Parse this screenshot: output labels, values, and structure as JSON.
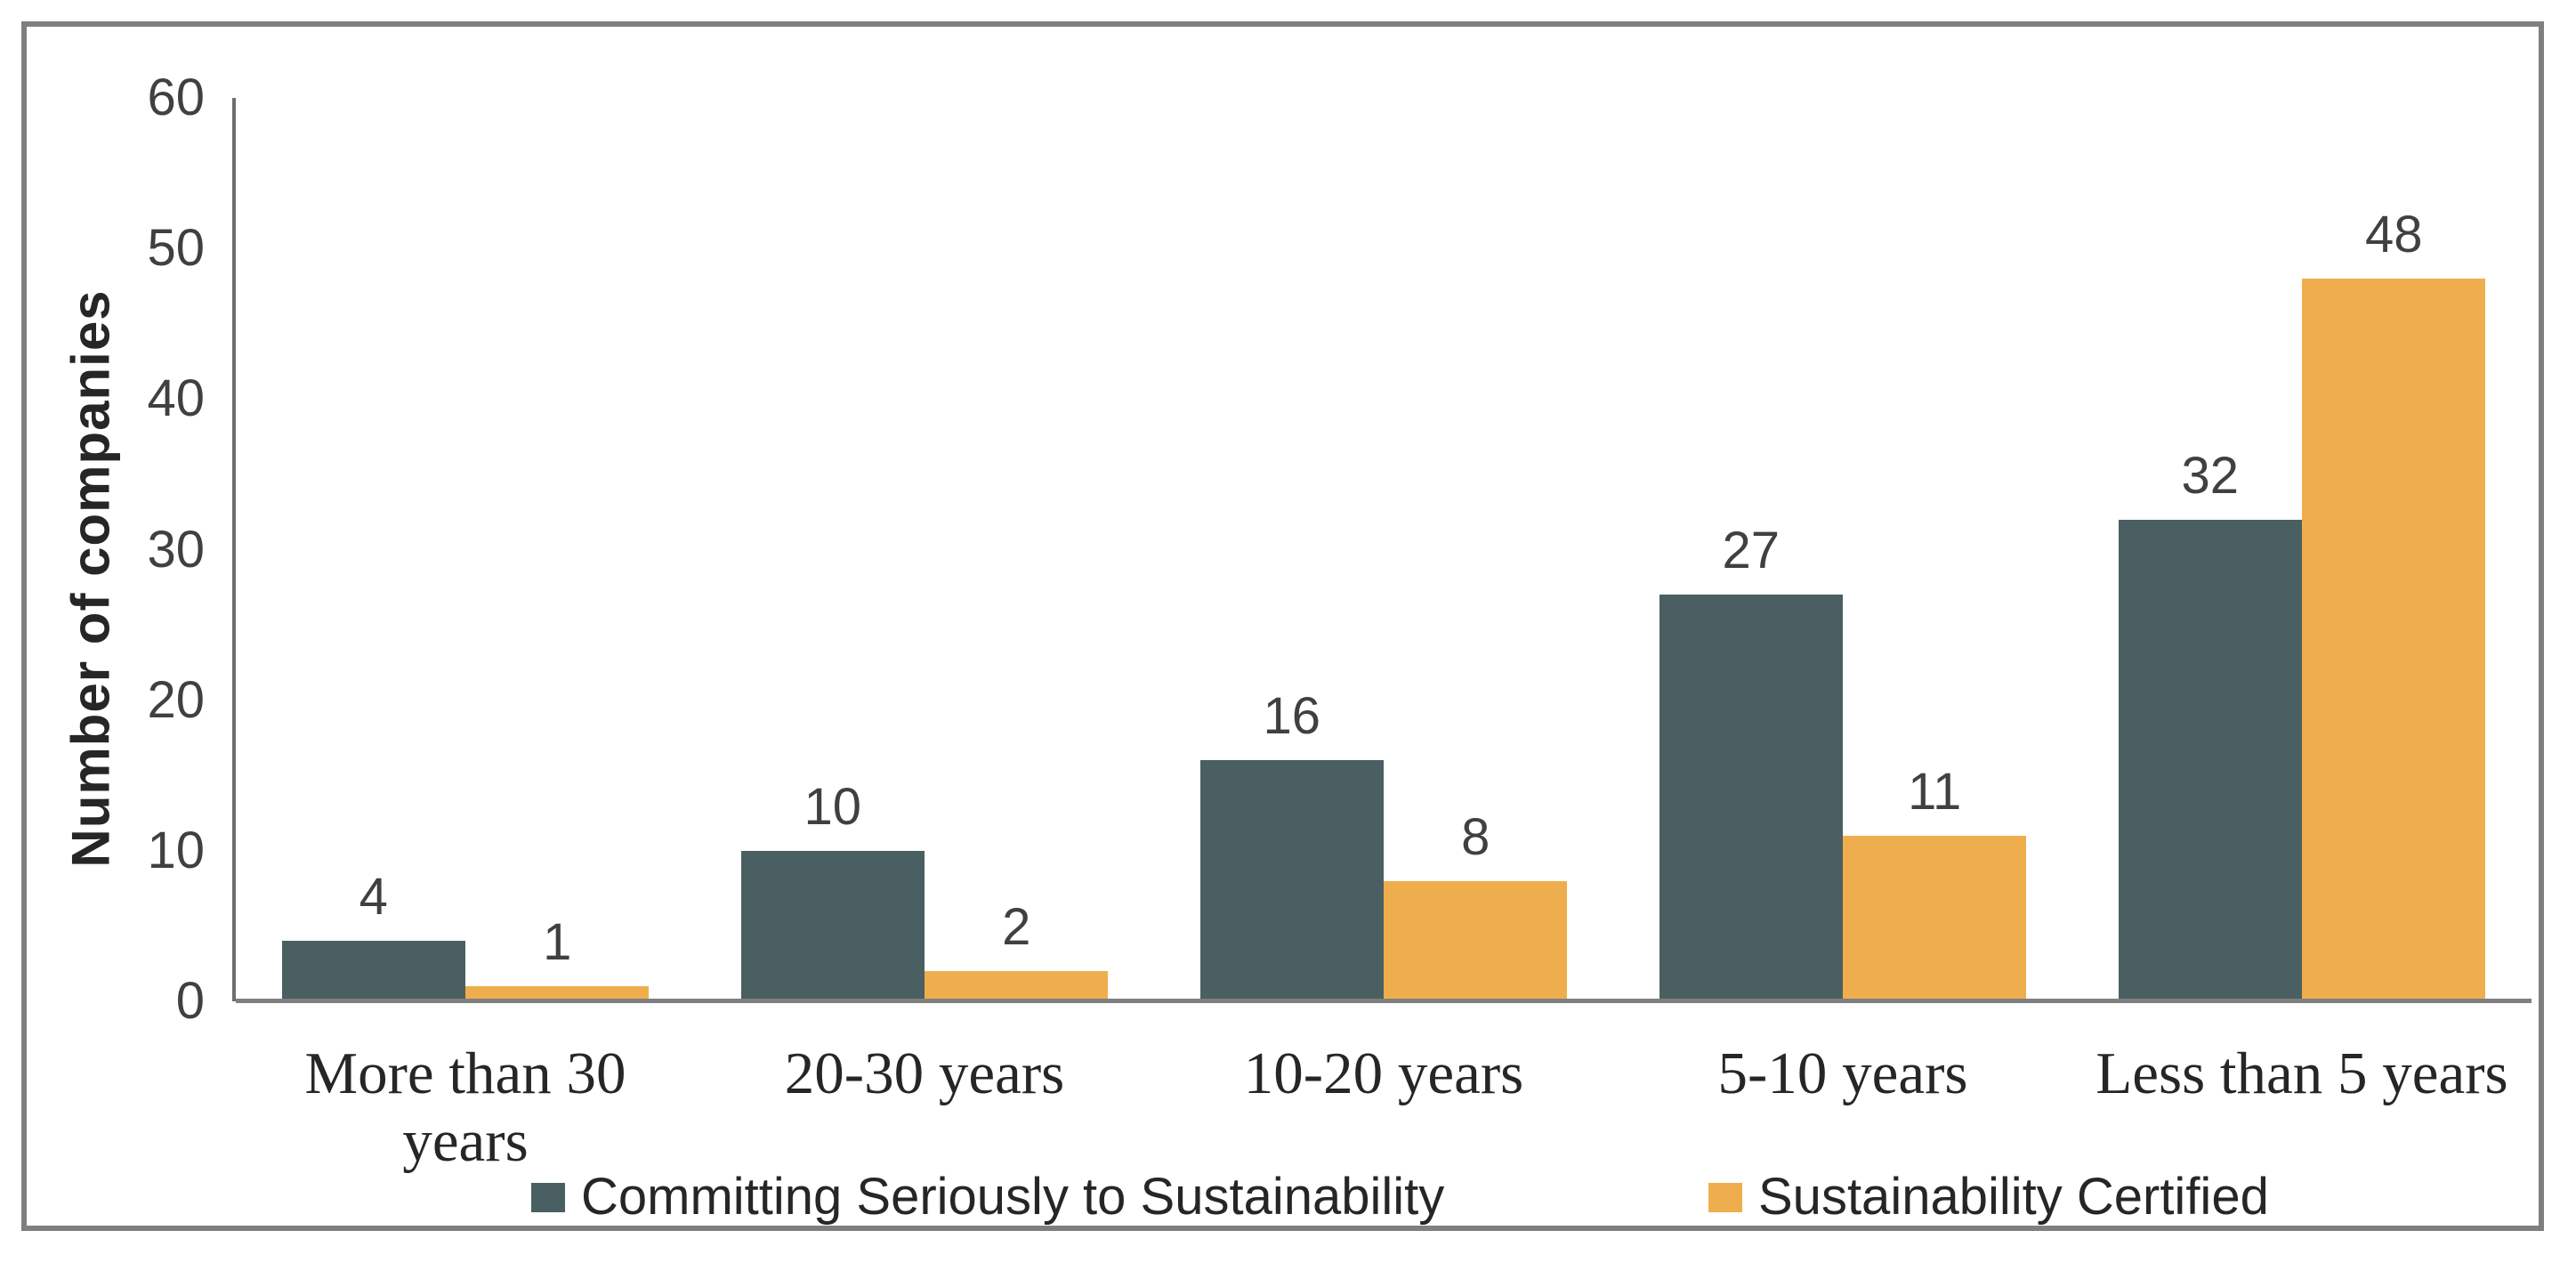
{
  "chart_data": {
    "type": "bar",
    "title": "",
    "xlabel": "",
    "ylabel": "Number of companies",
    "ylim": [
      0,
      60
    ],
    "yticks": [
      0,
      10,
      20,
      30,
      40,
      50,
      60
    ],
    "grid": false,
    "data_labels": true,
    "legend_position": "bottom",
    "categories": [
      "More than 30 years",
      "20-30 years",
      "10-20 years",
      "5-10 years",
      "Less than 5 years"
    ],
    "series": [
      {
        "name": "Committing Seriously to Sustainability",
        "color": "#4a5f62",
        "values": [
          4,
          10,
          16,
          27,
          32
        ]
      },
      {
        "name": "Sustainability Certified",
        "color": "#efae4d",
        "values": [
          1,
          2,
          8,
          11,
          48
        ]
      }
    ]
  },
  "colors": {
    "frame_border": "#7f7f7f",
    "axis_line": "#6e6e6e",
    "baseline": "#7f7f7f",
    "tick_text": "#404040",
    "value_label_text": "#404040",
    "category_text": "#262626",
    "legend_text": "#262626",
    "background": "#ffffff"
  }
}
